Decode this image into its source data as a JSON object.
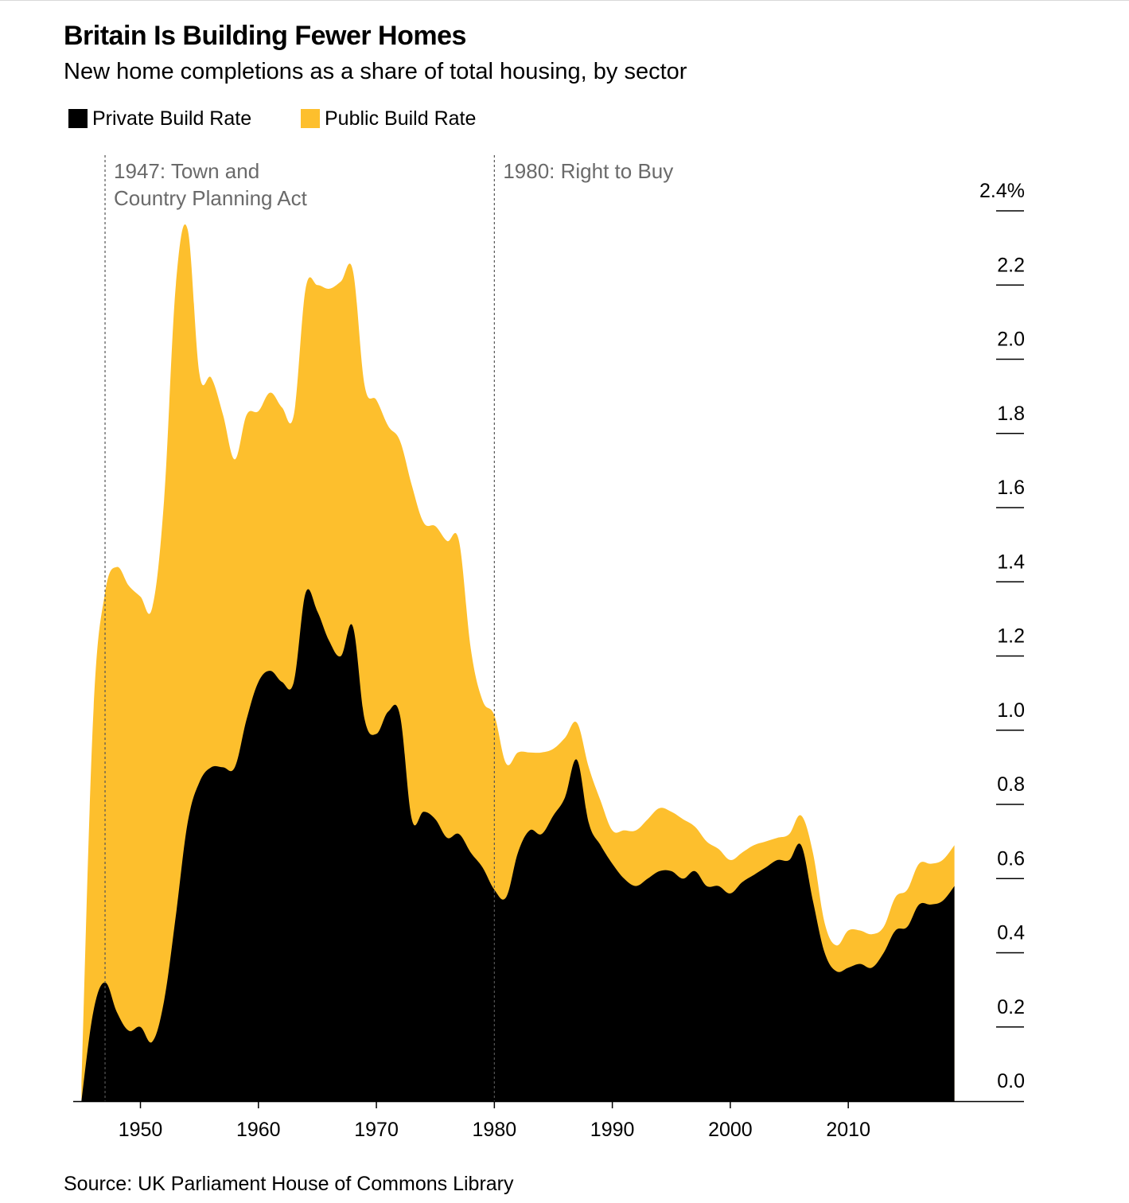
{
  "title": "Britain Is Building Fewer Homes",
  "subtitle": "New home completions as a share of total housing, by sector",
  "source": "Source: UK Parliament House of Commons Library",
  "legend": [
    {
      "label": "Private Build Rate",
      "color": "#000000"
    },
    {
      "label": "Public Build Rate",
      "color": "#fdbf2d"
    }
  ],
  "chart_data": {
    "type": "area",
    "stacked": true,
    "x_axis": {
      "range": [
        1944.3,
        2019.7
      ],
      "ticks": [
        1950,
        1960,
        1970,
        1980,
        1990,
        2000,
        2010
      ],
      "tick_labels": [
        "1950",
        "1960",
        "1970",
        "1980",
        "1990",
        "2000",
        "2010"
      ]
    },
    "y_axis": {
      "range": [
        0,
        2.4
      ],
      "position": "right",
      "ticks": [
        0,
        0.2,
        0.4,
        0.6,
        0.8,
        1.0,
        1.2,
        1.4,
        1.6,
        1.8,
        2.0,
        2.2,
        2.4
      ],
      "tick_labels": [
        "0.0",
        "0.2",
        "0.4",
        "0.6",
        "0.8",
        "1.0",
        "1.2",
        "1.4",
        "1.6",
        "1.8",
        "2.0",
        "2.2",
        "2.4%"
      ]
    },
    "grid": false,
    "legend_position": "top-left",
    "annotations": [
      {
        "x": 1947,
        "lines": [
          "1947: Town and",
          "Country Planning Act"
        ],
        "style": "dashed-vertical-line"
      },
      {
        "x": 1980,
        "lines": [
          "1980: Right to Buy"
        ],
        "style": "dashed-vertical-line"
      }
    ],
    "x": [
      1945,
      1946,
      1947,
      1948,
      1949,
      1950,
      1951,
      1952,
      1953,
      1954,
      1955,
      1956,
      1957,
      1958,
      1959,
      1960,
      1961,
      1962,
      1963,
      1964,
      1965,
      1966,
      1967,
      1968,
      1969,
      1970,
      1971,
      1972,
      1973,
      1974,
      1975,
      1976,
      1977,
      1978,
      1979,
      1980,
      1981,
      1982,
      1983,
      1984,
      1985,
      1986,
      1987,
      1988,
      1989,
      1990,
      1991,
      1992,
      1993,
      1994,
      1995,
      1996,
      1997,
      1998,
      1999,
      2000,
      2001,
      2002,
      2003,
      2004,
      2005,
      2006,
      2007,
      2008,
      2009,
      2010,
      2011,
      2012,
      2013,
      2014,
      2015,
      2016,
      2017,
      2018,
      2019
    ],
    "series": [
      {
        "name": "Private Build Rate",
        "color": "#000000",
        "values": [
          0.0,
          0.24,
          0.32,
          0.24,
          0.19,
          0.2,
          0.16,
          0.27,
          0.5,
          0.75,
          0.86,
          0.9,
          0.9,
          0.9,
          1.03,
          1.13,
          1.16,
          1.13,
          1.13,
          1.37,
          1.32,
          1.24,
          1.2,
          1.28,
          1.03,
          0.99,
          1.05,
          1.04,
          0.76,
          0.78,
          0.76,
          0.71,
          0.72,
          0.67,
          0.63,
          0.57,
          0.55,
          0.67,
          0.73,
          0.72,
          0.77,
          0.82,
          0.92,
          0.75,
          0.69,
          0.64,
          0.6,
          0.58,
          0.6,
          0.62,
          0.62,
          0.6,
          0.62,
          0.58,
          0.58,
          0.56,
          0.59,
          0.61,
          0.63,
          0.65,
          0.65,
          0.69,
          0.54,
          0.4,
          0.35,
          0.36,
          0.37,
          0.36,
          0.4,
          0.46,
          0.47,
          0.53,
          0.53,
          0.54,
          0.58
        ]
      },
      {
        "name": "Public Build Rate",
        "color": "#fdbf2d",
        "values": [
          0.05,
          0.8,
          1.05,
          1.2,
          1.2,
          1.16,
          1.17,
          1.35,
          1.7,
          1.6,
          1.1,
          1.05,
          0.95,
          0.83,
          0.82,
          0.73,
          0.75,
          0.74,
          0.72,
          0.82,
          0.88,
          0.95,
          1.01,
          0.96,
          0.9,
          0.9,
          0.77,
          0.74,
          0.9,
          0.78,
          0.79,
          0.8,
          0.79,
          0.55,
          0.45,
          0.47,
          0.36,
          0.27,
          0.21,
          0.22,
          0.18,
          0.16,
          0.1,
          0.15,
          0.12,
          0.09,
          0.13,
          0.15,
          0.16,
          0.17,
          0.16,
          0.16,
          0.12,
          0.12,
          0.1,
          0.09,
          0.08,
          0.08,
          0.07,
          0.06,
          0.07,
          0.08,
          0.13,
          0.08,
          0.07,
          0.1,
          0.09,
          0.09,
          0.07,
          0.09,
          0.1,
          0.11,
          0.11,
          0.11,
          0.11
        ]
      }
    ]
  }
}
